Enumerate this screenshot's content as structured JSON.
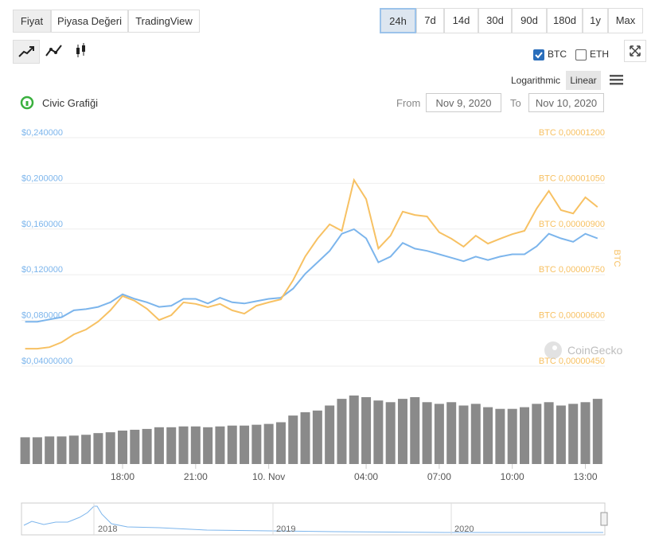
{
  "tabs": [
    "Fiyat",
    "Piyasa Değeri",
    "TradingView"
  ],
  "active_tab": 0,
  "ranges": [
    "24h",
    "7d",
    "14d",
    "30d",
    "90d",
    "180d",
    "1y",
    "Max"
  ],
  "active_range": 0,
  "toggles": [
    {
      "label": "BTC",
      "checked": true
    },
    {
      "label": "ETH",
      "checked": false
    }
  ],
  "scales": [
    "Logarithmic",
    "Linear"
  ],
  "active_scale": 1,
  "title": "Civic Grafiği",
  "from_label": "From",
  "from_date": "Nov 9, 2020",
  "to_label": "To",
  "to_date": "Nov 10, 2020",
  "watermark": "CoinGecko",
  "navigator_labels": [
    "2018",
    "2019",
    "2020"
  ],
  "chart_data": {
    "type": "line",
    "x": [
      14,
      14.5,
      15,
      15.5,
      16,
      16.5,
      17,
      17.5,
      18,
      18.5,
      19,
      19.5,
      20,
      20.5,
      21,
      21.5,
      22,
      22.5,
      23,
      23.5,
      24,
      24.5,
      25,
      25.5,
      26,
      26.5,
      27,
      27.5,
      28,
      28.5,
      29,
      29.5,
      30,
      30.5,
      31,
      31.5,
      32,
      32.5,
      33,
      33.5,
      34,
      34.5,
      35,
      35.5,
      36,
      36.5,
      37,
      37.5
    ],
    "xlim": [
      13.85,
      37.8
    ],
    "xticks": [
      {
        "value": 18,
        "label": "18:00"
      },
      {
        "value": 21,
        "label": "21:00"
      },
      {
        "value": 24,
        "label": "10. Nov"
      },
      {
        "value": 28,
        "label": "04:00"
      },
      {
        "value": 31,
        "label": "07:00"
      },
      {
        "value": 34,
        "label": "10:00"
      },
      {
        "value": 37,
        "label": "13:00"
      }
    ],
    "ylim": [
      0.04,
      0.24
    ],
    "yticks": [
      {
        "value": 0.04,
        "label": "$0,04000000"
      },
      {
        "value": 0.08,
        "label": "$0,080000"
      },
      {
        "value": 0.12,
        "label": "$0,120000"
      },
      {
        "value": 0.16,
        "label": "$0,160000"
      },
      {
        "value": 0.2,
        "label": "$0,200000"
      },
      {
        "value": 0.24,
        "label": "$0,240000"
      }
    ],
    "y2lim": [
      4.5e-06,
      1.2e-05
    ],
    "y2ticks": [
      {
        "value": 4.5e-06,
        "label": "BTC 0,00000450"
      },
      {
        "value": 6e-06,
        "label": "BTC 0,00000600"
      },
      {
        "value": 7.5e-06,
        "label": "BTC 0,00000750"
      },
      {
        "value": 9e-06,
        "label": "BTC 0,00000900"
      },
      {
        "value": 1.05e-05,
        "label": "BTC 0,00001050"
      },
      {
        "value": 1.2e-05,
        "label": "BTC 0,00001200"
      }
    ],
    "y2_label": "BTC",
    "grid": true,
    "series": [
      {
        "name": "USD",
        "color": "#7cb5ec",
        "values": [
          0.074,
          0.074,
          0.076,
          0.078,
          0.084,
          0.085,
          0.087,
          0.091,
          0.098,
          0.094,
          0.091,
          0.087,
          0.088,
          0.094,
          0.094,
          0.09,
          0.095,
          0.091,
          0.09,
          0.092,
          0.094,
          0.095,
          0.103,
          0.116,
          0.126,
          0.136,
          0.151,
          0.155,
          0.147,
          0.126,
          0.131,
          0.143,
          0.138,
          0.136,
          0.133,
          0.13,
          0.127,
          0.131,
          0.128,
          0.131,
          0.133,
          0.133,
          0.14,
          0.151,
          0.147,
          0.144,
          0.151,
          0.147
        ]
      },
      {
        "name": "BTC",
        "color": "#f7c163",
        "axis": "y2",
        "values": [
          4.89e-06,
          4.89e-06,
          4.94e-06,
          5.1e-06,
          5.36e-06,
          5.52e-06,
          5.78e-06,
          6.15e-06,
          6.62e-06,
          6.46e-06,
          6.2e-06,
          5.83e-06,
          5.99e-06,
          6.41e-06,
          6.36e-06,
          6.25e-06,
          6.36e-06,
          6.15e-06,
          6.04e-06,
          6.3e-06,
          6.41e-06,
          6.51e-06,
          7.14e-06,
          7.92e-06,
          8.5e-06,
          8.97e-06,
          8.76e-06,
          1.043e-05,
          9.8e-06,
          8.18e-06,
          8.6e-06,
          9.39e-06,
          9.28e-06,
          9.23e-06,
          8.71e-06,
          8.5e-06,
          8.24e-06,
          8.6e-06,
          8.34e-06,
          8.5e-06,
          8.65e-06,
          8.76e-06,
          9.49e-06,
          1.007e-05,
          9.44e-06,
          9.33e-06,
          9.86e-06,
          9.54e-06
        ]
      }
    ],
    "volume": {
      "color": "#8a8a8a",
      "values": [
        32,
        32,
        33,
        33,
        34,
        35,
        37,
        38,
        40,
        41,
        42,
        44,
        44,
        45,
        45,
        44,
        45,
        46,
        46,
        47,
        48,
        50,
        58,
        62,
        64,
        70,
        78,
        82,
        80,
        76,
        74,
        78,
        80,
        74,
        72,
        74,
        70,
        72,
        68,
        66,
        66,
        68,
        72,
        74,
        70,
        72,
        74,
        78
      ]
    }
  }
}
